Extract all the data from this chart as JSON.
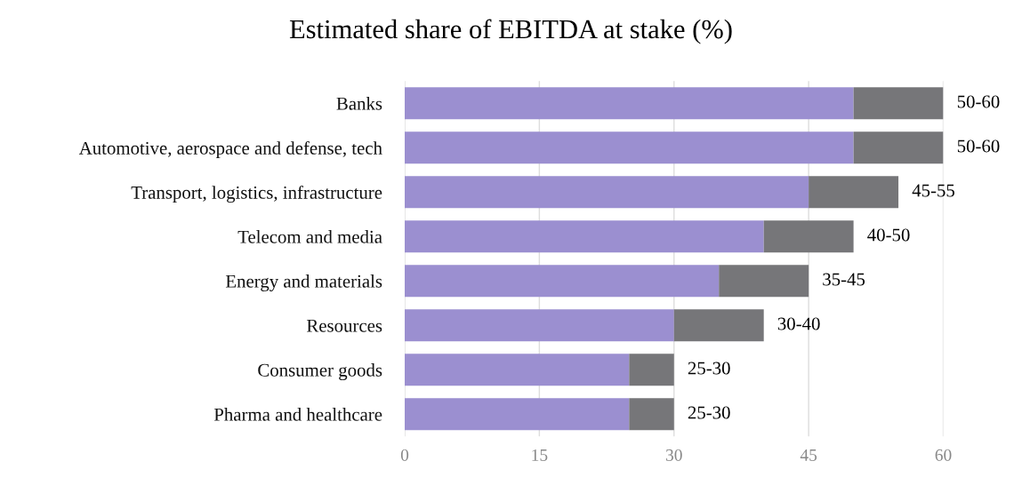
{
  "chart_data": {
    "type": "bar",
    "orientation": "horizontal",
    "stacked": true,
    "title": "Estimated share of EBITDA at stake (%)",
    "categories": [
      "Banks",
      "Automotive, aerospace and defense, tech",
      "Transport, logistics, infrastructure",
      "Telecom and media",
      "Energy and materials",
      "Resources",
      "Consumer goods",
      "Pharma and healthcare"
    ],
    "series": [
      {
        "color": "#9b8fd0",
        "values": [
          50,
          50,
          45,
          40,
          35,
          30,
          25,
          25
        ]
      },
      {
        "color": "#767679",
        "values": [
          10,
          10,
          10,
          10,
          10,
          10,
          5,
          5
        ]
      }
    ],
    "totals": [
      "50-60",
      "50-60",
      "45-55",
      "40-50",
      "35-45",
      "30-40",
      "25-30",
      "25-30"
    ],
    "xlim": [
      0,
      60
    ],
    "xticks": [
      0,
      15,
      30,
      45,
      60
    ],
    "grid": "x",
    "legend": false
  }
}
